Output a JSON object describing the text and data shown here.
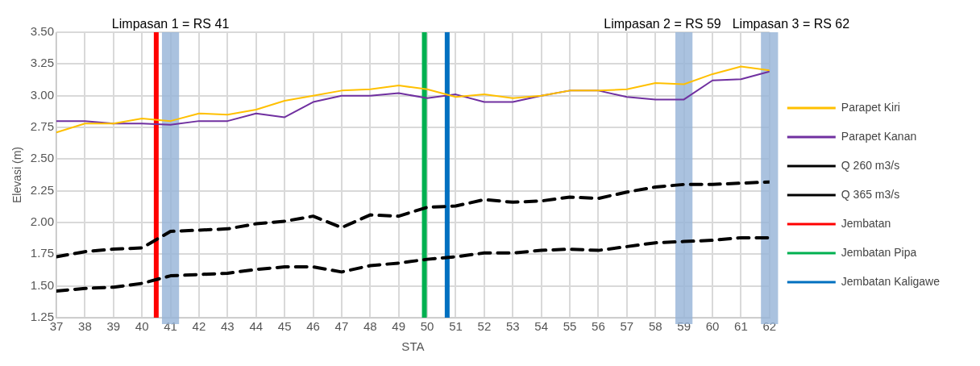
{
  "chart_data": {
    "type": "line",
    "xlabel": "STA",
    "ylabel": "Elevasi (m)",
    "x": [
      37,
      38,
      39,
      40,
      41,
      42,
      43,
      44,
      45,
      46,
      47,
      48,
      49,
      50,
      51,
      52,
      53,
      54,
      55,
      56,
      57,
      58,
      59,
      60,
      61,
      62
    ],
    "xlim": [
      37,
      62
    ],
    "xticks": [
      37,
      38,
      39,
      40,
      41,
      42,
      43,
      44,
      45,
      46,
      47,
      48,
      49,
      50,
      51,
      52,
      53,
      54,
      55,
      56,
      57,
      58,
      59,
      60,
      61,
      62
    ],
    "ylim": [
      1.25,
      3.5
    ],
    "yticks": [
      {
        "value": 1.25,
        "label": "1.25"
      },
      {
        "value": 1.5,
        "label": "1.50"
      },
      {
        "value": 1.75,
        "label": "1.75"
      },
      {
        "value": 2,
        "label": "2.00"
      },
      {
        "value": 2.25,
        "label": "2.25"
      },
      {
        "value": 2.5,
        "label": "2.50"
      },
      {
        "value": 2.75,
        "label": "2.75"
      },
      {
        "value": 3,
        "label": "3.00"
      },
      {
        "value": 3.25,
        "label": "3.25"
      },
      {
        "value": 3.5,
        "label": "3.50"
      }
    ],
    "grid": true,
    "legend": "right",
    "marker": "none",
    "series": [
      {
        "name": "Parapet Kiri",
        "color": "#ffc000",
        "line_style": "solid",
        "values": [
          2.71,
          2.78,
          2.78,
          2.82,
          2.8,
          2.86,
          2.85,
          2.89,
          2.96,
          3.0,
          3.04,
          3.05,
          3.08,
          3.05,
          2.99,
          3.01,
          2.98,
          3.0,
          3.04,
          3.04,
          3.05,
          3.1,
          3.09,
          3.17,
          3.23,
          3.2
        ]
      },
      {
        "name": "Parapet Kanan",
        "color": "#7030a0",
        "line_style": "solid",
        "values": [
          2.8,
          2.8,
          2.78,
          2.78,
          2.77,
          2.8,
          2.8,
          2.86,
          2.83,
          2.95,
          3.0,
          3.0,
          3.02,
          2.98,
          3.01,
          2.95,
          2.95,
          3.0,
          3.04,
          3.04,
          2.99,
          2.97,
          2.97,
          3.12,
          3.13,
          3.19
        ]
      },
      {
        "name": "Q 260 m3/s",
        "color": "#000000",
        "line_style": "dashed",
        "values": [
          1.46,
          1.48,
          1.49,
          1.52,
          1.58,
          1.59,
          1.6,
          1.63,
          1.65,
          1.65,
          1.61,
          1.66,
          1.68,
          1.71,
          1.73,
          1.76,
          1.76,
          1.78,
          1.79,
          1.78,
          1.81,
          1.84,
          1.85,
          1.86,
          1.88,
          1.88
        ]
      },
      {
        "name": "Q 365 m3/s",
        "color": "#000000",
        "line_style": "dashed",
        "values": [
          1.73,
          1.77,
          1.79,
          1.8,
          1.93,
          1.94,
          1.95,
          1.99,
          2.01,
          2.05,
          1.96,
          2.06,
          2.05,
          2.12,
          2.13,
          2.18,
          2.16,
          2.17,
          2.2,
          2.19,
          2.24,
          2.28,
          2.3,
          2.3,
          2.31,
          2.32
        ]
      },
      {
        "name": "Jembatan",
        "color": "#ff0000",
        "line_style": "solid",
        "x": [
          40.5,
          40.5
        ],
        "values": [
          1.25,
          3.5
        ]
      },
      {
        "name": "Jembatan Pipa",
        "color": "#00b050",
        "line_style": "solid",
        "x": [
          49.9,
          49.9
        ],
        "values": [
          1.25,
          3.5
        ]
      },
      {
        "name": "Jembatan Kaligawe",
        "color": "#0070c0",
        "line_style": "solid",
        "x": [
          50.7,
          50.7
        ],
        "values": [
          1.25,
          3.5
        ]
      }
    ],
    "bands": [
      {
        "axis": "x",
        "from": 40.7,
        "to": 41.3,
        "label": "Limpasan 1 = RS 41",
        "color": "#95b3d7"
      },
      {
        "axis": "x",
        "from": 58.7,
        "to": 59.3,
        "label": "Limpasan 2 = RS 59",
        "color": "#95b3d7"
      },
      {
        "axis": "x",
        "from": 61.7,
        "to": 62.3,
        "label": "Limpasan 3 = RS 62",
        "color": "#95b3d7"
      }
    ]
  }
}
